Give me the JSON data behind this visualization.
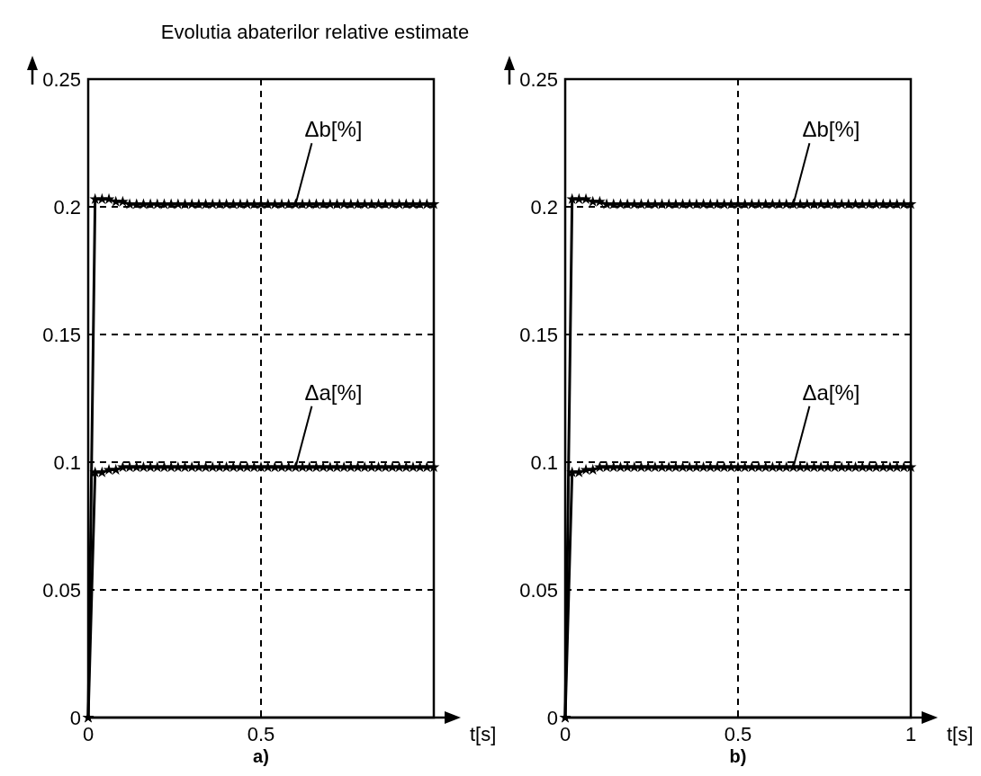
{
  "chart_data": [
    {
      "type": "line",
      "title": "Evolutia abaterilor relative estimate",
      "xlabel": "t[s]",
      "annotations": [
        "a)"
      ],
      "x": [
        0,
        0.02,
        0.04,
        0.06,
        0.08,
        0.1,
        0.12,
        0.14,
        0.16,
        0.18,
        0.2,
        0.22,
        0.24,
        0.26,
        0.28,
        0.3,
        0.32,
        0.34,
        0.36,
        0.38,
        0.4,
        0.42,
        0.44,
        0.46,
        0.48,
        0.5,
        0.52,
        0.54,
        0.56,
        0.58,
        0.6,
        0.62,
        0.64,
        0.66,
        0.68,
        0.7,
        0.72,
        0.74,
        0.76,
        0.78,
        0.8,
        0.82,
        0.84,
        0.86,
        0.88,
        0.9,
        0.92,
        0.94,
        0.96,
        0.98,
        1
      ],
      "series": [
        {
          "name": "Δb[%]",
          "color": "#000000",
          "values": [
            0,
            0.203,
            0.203,
            0.203,
            0.202,
            0.202,
            0.201,
            0.201,
            0.201,
            0.201,
            0.201,
            0.201,
            0.201,
            0.201,
            0.201,
            0.201,
            0.201,
            0.201,
            0.201,
            0.201,
            0.201,
            0.201,
            0.201,
            0.201,
            0.201,
            0.201,
            0.201,
            0.201,
            0.201,
            0.201,
            0.201,
            0.201,
            0.201,
            0.201,
            0.201,
            0.201,
            0.201,
            0.201,
            0.201,
            0.201,
            0.201,
            0.201,
            0.201,
            0.201,
            0.201,
            0.201,
            0.201,
            0.201,
            0.201,
            0.201,
            0.201
          ]
        },
        {
          "name": "Δa[%]",
          "color": "#000000",
          "values": [
            0,
            0.096,
            0.096,
            0.097,
            0.097,
            0.098,
            0.098,
            0.098,
            0.098,
            0.098,
            0.098,
            0.098,
            0.098,
            0.098,
            0.098,
            0.098,
            0.098,
            0.098,
            0.098,
            0.098,
            0.098,
            0.098,
            0.098,
            0.098,
            0.098,
            0.098,
            0.098,
            0.098,
            0.098,
            0.098,
            0.098,
            0.098,
            0.098,
            0.098,
            0.098,
            0.098,
            0.098,
            0.098,
            0.098,
            0.098,
            0.098,
            0.098,
            0.098,
            0.098,
            0.098,
            0.098,
            0.098,
            0.098,
            0.098,
            0.098,
            0.098
          ]
        }
      ],
      "xlim": [
        0,
        1
      ],
      "xticks": [
        0,
        0.5,
        {
          "value": 1,
          "label": null
        }
      ],
      "ylim": [
        0,
        0.25
      ],
      "yticks": [
        0,
        0.05,
        0.1,
        0.15,
        0.2,
        0.25
      ],
      "grid": true,
      "marker": "star",
      "line_style": "solid"
    },
    {
      "type": "line",
      "xlabel": "t[s]",
      "annotations": [
        "b)"
      ],
      "x": [
        0,
        0.02,
        0.04,
        0.06,
        0.08,
        0.1,
        0.12,
        0.14,
        0.16,
        0.18,
        0.2,
        0.22,
        0.24,
        0.26,
        0.28,
        0.3,
        0.32,
        0.34,
        0.36,
        0.38,
        0.4,
        0.42,
        0.44,
        0.46,
        0.48,
        0.5,
        0.52,
        0.54,
        0.56,
        0.58,
        0.6,
        0.62,
        0.64,
        0.66,
        0.68,
        0.7,
        0.72,
        0.74,
        0.76,
        0.78,
        0.8,
        0.82,
        0.84,
        0.86,
        0.88,
        0.9,
        0.92,
        0.94,
        0.96,
        0.98,
        1
      ],
      "series": [
        {
          "name": "Δb[%]",
          "color": "#000000",
          "values": [
            0,
            0.203,
            0.203,
            0.203,
            0.202,
            0.202,
            0.201,
            0.201,
            0.201,
            0.201,
            0.201,
            0.201,
            0.201,
            0.201,
            0.201,
            0.201,
            0.201,
            0.201,
            0.201,
            0.201,
            0.201,
            0.201,
            0.201,
            0.201,
            0.201,
            0.201,
            0.201,
            0.201,
            0.201,
            0.201,
            0.201,
            0.201,
            0.201,
            0.201,
            0.201,
            0.201,
            0.201,
            0.201,
            0.201,
            0.201,
            0.201,
            0.201,
            0.201,
            0.201,
            0.201,
            0.201,
            0.201,
            0.201,
            0.201,
            0.201,
            0.201
          ]
        },
        {
          "name": "Δa[%]",
          "color": "#000000",
          "values": [
            0,
            0.096,
            0.096,
            0.097,
            0.097,
            0.098,
            0.098,
            0.098,
            0.098,
            0.098,
            0.098,
            0.098,
            0.098,
            0.098,
            0.098,
            0.098,
            0.098,
            0.098,
            0.098,
            0.098,
            0.098,
            0.098,
            0.098,
            0.098,
            0.098,
            0.098,
            0.098,
            0.098,
            0.098,
            0.098,
            0.098,
            0.098,
            0.098,
            0.098,
            0.098,
            0.098,
            0.098,
            0.098,
            0.098,
            0.098,
            0.098,
            0.098,
            0.098,
            0.098,
            0.098,
            0.098,
            0.098,
            0.098,
            0.098,
            0.098,
            0.098
          ]
        }
      ],
      "xlim": [
        0,
        1
      ],
      "xticks": [
        0,
        0.5,
        1
      ],
      "ylim": [
        0,
        0.25
      ],
      "yticks": [
        0,
        0.05,
        0.1,
        0.15,
        0.2,
        0.25
      ],
      "grid": true,
      "marker": "star",
      "line_style": "solid"
    }
  ]
}
